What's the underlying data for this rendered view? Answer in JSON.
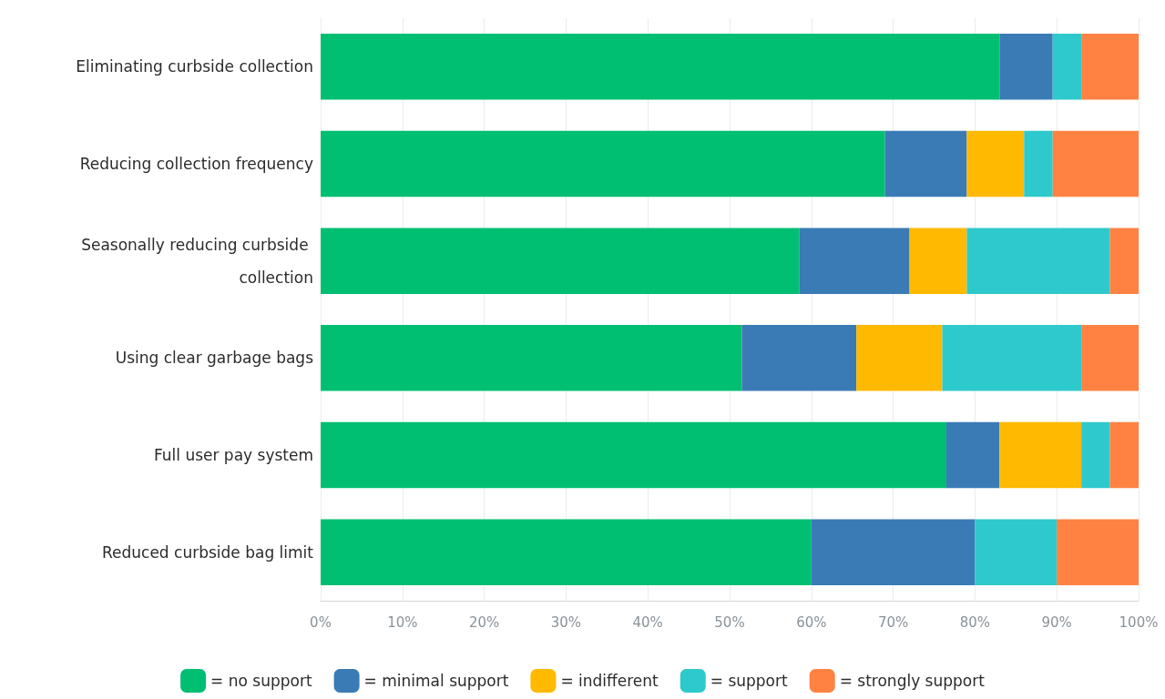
{
  "chart_data": {
    "type": "bar",
    "orientation": "horizontal",
    "stacked": true,
    "categories": [
      "Eliminating curbside collection",
      "Reducing collection frequency",
      "Seasonally reducing curbside collection",
      "Using clear garbage bags",
      "Full user pay system",
      "Reduced curbside bag limit"
    ],
    "series": [
      {
        "name": "= no support",
        "color": "#00bf72",
        "values": [
          83,
          69,
          58.5,
          51.5,
          76.5,
          60
        ]
      },
      {
        "name": "= minimal support",
        "color": "#3a7bb6",
        "values": [
          6.5,
          10,
          13.5,
          14,
          6.5,
          20
        ]
      },
      {
        "name": "= indifferent",
        "color": "#ffb900",
        "values": [
          0,
          7,
          7,
          10.5,
          10,
          0
        ]
      },
      {
        "name": "= support",
        "color": "#2ec9cc",
        "values": [
          3.5,
          3.5,
          17.5,
          17,
          3.5,
          10
        ]
      },
      {
        "name": "= strongly support",
        "color": "#ff8242",
        "values": [
          7,
          10.5,
          3.5,
          7,
          3.5,
          10
        ]
      }
    ],
    "xlim": [
      0,
      100
    ],
    "xticks": [
      {
        "value": 0,
        "label": "0%"
      },
      {
        "value": 10,
        "label": "10%"
      },
      {
        "value": 20,
        "label": "20%"
      },
      {
        "value": 30,
        "label": "30%"
      },
      {
        "value": 40,
        "label": "40%"
      },
      {
        "value": 50,
        "label": "50%"
      },
      {
        "value": 60,
        "label": "60%"
      },
      {
        "value": 70,
        "label": "70%"
      },
      {
        "value": 80,
        "label": "80%"
      },
      {
        "value": 90,
        "label": "90%"
      },
      {
        "value": 100,
        "label": "100%"
      }
    ],
    "grid": "x",
    "legend": "bottom"
  }
}
